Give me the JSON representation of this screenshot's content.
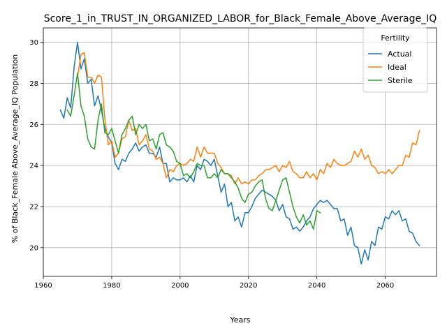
{
  "chart_data": {
    "type": "line",
    "title": "Score_1_in_TRUST_IN_ORGANIZED_LABOR_for_Black_Female_Above_Average_IQ",
    "xlabel": "Years",
    "ylabel": "% of Black_Female Above_Average_IQ Population",
    "xlim": [
      1960,
      2075
    ],
    "ylim": [
      18.6,
      30.7
    ],
    "xticks": [
      1960,
      1980,
      2000,
      2020,
      2040,
      2060
    ],
    "yticks": [
      20,
      22,
      24,
      26,
      28,
      30
    ],
    "grid": true,
    "legend": {
      "title": "Fertility",
      "placement": "top-right"
    },
    "series": [
      {
        "name": "Actual",
        "color": "#1f77b4",
        "x": [
          1965,
          1966,
          1967,
          1968,
          1969,
          1970,
          1971,
          1972,
          1973,
          1974,
          1975,
          1976,
          1977,
          1978,
          1979,
          1980,
          1981,
          1982,
          1983,
          1984,
          1985,
          1986,
          1987,
          1988,
          1989,
          1990,
          1991,
          1992,
          1993,
          1994,
          1995,
          1996,
          1997,
          1998,
          1999,
          2000,
          2001,
          2002,
          2003,
          2004,
          2005,
          2006,
          2007,
          2008,
          2009,
          2010,
          2011,
          2012,
          2013,
          2014,
          2015,
          2016,
          2017,
          2018,
          2019,
          2020,
          2021,
          2022,
          2023,
          2024,
          2025,
          2026,
          2027,
          2028,
          2029,
          2030,
          2031,
          2032,
          2033,
          2034,
          2035,
          2036,
          2037,
          2038,
          2039,
          2040,
          2041,
          2042,
          2043,
          2044,
          2045,
          2046,
          2047,
          2048,
          2049,
          2050,
          2051,
          2052,
          2053,
          2054,
          2055,
          2056,
          2057,
          2058,
          2059,
          2060,
          2061,
          2062,
          2063,
          2064,
          2065,
          2066,
          2067,
          2068,
          2069,
          2070
        ],
        "values": [
          26.7,
          26.3,
          27.3,
          26.8,
          28.8,
          30.0,
          28.7,
          29.2,
          28.0,
          28.2,
          26.9,
          27.4,
          26.7,
          25.8,
          25.4,
          25.1,
          24.1,
          23.8,
          24.3,
          24.2,
          24.6,
          24.8,
          25.1,
          24.7,
          24.9,
          25.0,
          24.6,
          24.6,
          24.4,
          24.9,
          24.1,
          24.1,
          23.2,
          23.4,
          23.3,
          23.3,
          23.4,
          23.2,
          23.5,
          23.2,
          24.0,
          23.8,
          24.3,
          24.2,
          24.0,
          24.3,
          23.5,
          22.7,
          23.1,
          22.0,
          22.2,
          21.3,
          21.5,
          21.0,
          21.7,
          21.7,
          22.0,
          22.4,
          22.6,
          22.8,
          22.7,
          22.6,
          22.5,
          22.3,
          21.8,
          22.1,
          21.5,
          21.4,
          20.9,
          21.0,
          20.8,
          21.0,
          21.3,
          21.5,
          21.9,
          22.1,
          22.3,
          22.2,
          22.3,
          22.1,
          21.9,
          21.9,
          21.3,
          21.4,
          20.6,
          21.0,
          20.1,
          20.0,
          19.2,
          19.9,
          19.4,
          20.3,
          20.1,
          21.0,
          20.9,
          21.5,
          21.4,
          21.8,
          21.6,
          21.8,
          21.3,
          21.4,
          20.8,
          20.7,
          20.3,
          20.1
        ]
      },
      {
        "name": "Ideal",
        "color": "#ff7f0e",
        "x": [
          1970,
          1971,
          1972,
          1973,
          1974,
          1975,
          1976,
          1977,
          1978,
          1979,
          1980,
          1981,
          1982,
          1983,
          1984,
          1985,
          1986,
          1987,
          1988,
          1989,
          1990,
          1991,
          1992,
          1993,
          1994,
          1995,
          1996,
          1997,
          1998,
          1999,
          2000,
          2001,
          2002,
          2003,
          2004,
          2005,
          2006,
          2007,
          2008,
          2009,
          2010,
          2011,
          2012,
          2013,
          2014,
          2015,
          2016,
          2017,
          2018,
          2019,
          2020,
          2021,
          2022,
          2023,
          2024,
          2025,
          2026,
          2027,
          2028,
          2029,
          2030,
          2031,
          2032,
          2033,
          2034,
          2035,
          2036,
          2037,
          2038,
          2039,
          2040,
          2041,
          2042,
          2043,
          2044,
          2045,
          2046,
          2047,
          2048,
          2049,
          2050,
          2051,
          2052,
          2053,
          2054,
          2055,
          2056,
          2057,
          2058,
          2059,
          2060,
          2061,
          2062,
          2063,
          2064,
          2065,
          2066,
          2067,
          2068,
          2069,
          2070
        ],
        "values": [
          28.3,
          29.4,
          29.5,
          28.3,
          28.3,
          28.0,
          28.4,
          28.3,
          26.3,
          25.0,
          25.2,
          24.4,
          24.6,
          25.3,
          25.4,
          26.2,
          25.7,
          25.8,
          25.0,
          25.2,
          25.5,
          24.8,
          24.7,
          24.3,
          24.4,
          24.1,
          23.4,
          23.8,
          23.7,
          24.0,
          24.1,
          24.0,
          24.1,
          24.3,
          24.2,
          24.9,
          24.4,
          24.9,
          24.6,
          24.6,
          24.6,
          24.1,
          23.9,
          23.6,
          23.6,
          23.5,
          23.1,
          23.4,
          23.1,
          23.2,
          23.1,
          23.3,
          23.3,
          23.5,
          23.6,
          23.8,
          23.8,
          23.9,
          24.0,
          23.7,
          24.0,
          23.9,
          24.2,
          23.7,
          23.6,
          23.4,
          23.4,
          23.7,
          23.4,
          23.6,
          23.3,
          23.8,
          23.6,
          24.1,
          23.9,
          24.3,
          24.1,
          24.0,
          24.0,
          24.1,
          24.2,
          24.7,
          24.4,
          24.8,
          24.3,
          24.5,
          24.0,
          23.9,
          23.6,
          23.7,
          23.6,
          23.8,
          23.6,
          23.8,
          24.0,
          24.0,
          24.5,
          24.4,
          25.1,
          25.0,
          25.7
        ]
      },
      {
        "name": "Sterile",
        "color": "#2ca02c",
        "x": [
          1967,
          1968,
          1969,
          1970,
          1971,
          1972,
          1973,
          1974,
          1975,
          1976,
          1977,
          1978,
          1979,
          1980,
          1981,
          1982,
          1983,
          1984,
          1985,
          1986,
          1987,
          1988,
          1989,
          1990,
          1991,
          1992,
          1993,
          1994,
          1995,
          1996,
          1997,
          1998,
          1999,
          2000,
          2001,
          2002,
          2003,
          2004,
          2005,
          2006,
          2007,
          2008,
          2009,
          2010,
          2011,
          2012,
          2013,
          2014,
          2015,
          2016,
          2017,
          2018,
          2019,
          2020,
          2021,
          2022,
          2023,
          2024,
          2025,
          2026,
          2027,
          2028,
          2029,
          2030,
          2031,
          2032,
          2033,
          2034,
          2035,
          2036,
          2037,
          2038,
          2039,
          2040,
          2041
        ],
        "values": [
          26.7,
          26.4,
          27.4,
          28.5,
          26.9,
          26.4,
          25.3,
          24.9,
          24.8,
          26.2,
          27.0,
          25.6,
          25.5,
          25.8,
          25.2,
          24.6,
          25.5,
          25.8,
          26.2,
          26.4,
          25.5,
          26.0,
          25.8,
          26.0,
          25.2,
          25.3,
          24.8,
          25.5,
          25.6,
          25.0,
          24.9,
          24.7,
          24.2,
          24.1,
          23.5,
          23.6,
          23.4,
          23.7,
          24.1,
          24.0,
          24.0,
          23.4,
          23.4,
          23.6,
          23.4,
          23.8,
          23.6,
          23.6,
          23.4,
          23.2,
          22.9,
          22.4,
          22.2,
          22.6,
          22.7,
          23.0,
          23.2,
          23.3,
          22.4,
          21.9,
          21.8,
          22.3,
          22.8,
          23.3,
          23.4,
          22.7,
          22.0,
          21.5,
          21.2,
          21.6,
          21.1,
          21.3,
          20.9,
          21.8,
          21.7
        ]
      }
    ]
  }
}
